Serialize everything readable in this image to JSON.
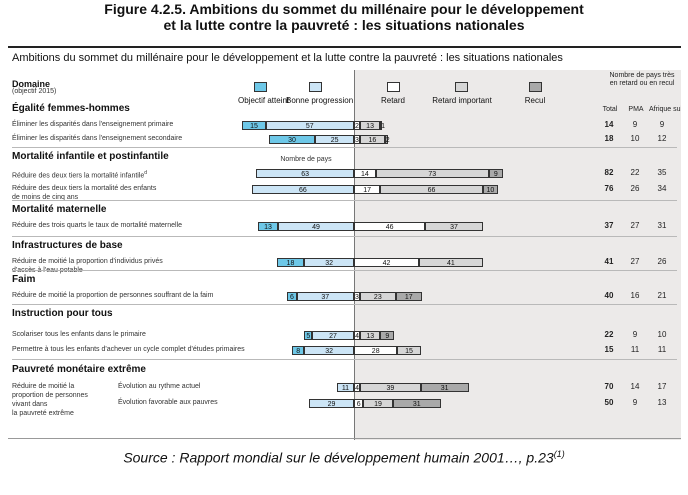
{
  "figure_title_line1": "Figure 4.2.5. Ambitions du sommet du millénaire pour le développement",
  "figure_title_line2": "et la lutte contre la pauvreté : les situations nationales",
  "source": "Source : Rapport mondial sur le développement humain 2001…, p.23",
  "source_note": "(1)",
  "colors": {
    "objectif": "#6ec8e8",
    "bonne": "#cce5f6",
    "retard": "#ffffff",
    "retard_important": "#d6d6d6",
    "recul": "#a9a9a9",
    "shade": "#eceae9"
  },
  "chart_data": {
    "type": "bar",
    "orientation": "horizontal",
    "stacking": "diverging",
    "title": "Ambitions du sommet du millénaire pour le développement et la lutte contre la pauvreté : les situations nationales",
    "domain_header": "Domaine",
    "domain_subheader": "(objectif 2015)",
    "axis_note": "Nombre de pays",
    "legend": [
      "Objectif atteint",
      "Bonne progression",
      "Retard",
      "Retard important",
      "Recul"
    ],
    "columns_header": "Nombre de pays très en retard ou en recul",
    "columns": [
      "Total",
      "PMA",
      "Afrique subsaharienne"
    ],
    "columns_display": [
      "Total",
      "PMA",
      "Afrique subsaharie"
    ],
    "sections": [
      {
        "name": "Égalité femmes-hommes",
        "rows": [
          {
            "label": [
              "Éliminer les disparités dans l'enseignement primaire"
            ],
            "objectif": 15,
            "bonne": 57,
            "retard": 2,
            "retard_important": 13,
            "recul": 1,
            "total": 14,
            "pma": 9,
            "afrique": 9
          },
          {
            "label": [
              "Éliminer les disparités dans l'enseignement secondaire"
            ],
            "objectif": 30,
            "bonne": 25,
            "retard": 3,
            "retard_important": 16,
            "recul": 2,
            "total": 18,
            "pma": 10,
            "afrique": 12
          }
        ]
      },
      {
        "name": "Mortalité infantile et postinfantile",
        "rows": [
          {
            "label": [
              "Réduire des deux tiers la mortalité infantile"
            ],
            "note": "d",
            "objectif": 0,
            "bonne": 63,
            "retard": 14,
            "retard_important": 73,
            "recul": 9,
            "total": 82,
            "pma": 22,
            "afrique": 35
          },
          {
            "label": [
              "Réduire des deux tiers la mortalité des enfants",
              "de moins de cinq ans"
            ],
            "objectif": 0,
            "bonne": 66,
            "retard": 17,
            "retard_important": 66,
            "recul": 10,
            "total": 76,
            "pma": 26,
            "afrique": 34
          }
        ]
      },
      {
        "name": "Mortalité maternelle",
        "rows": [
          {
            "label": [
              "Réduire des trois quarts le taux de mortalité maternelle"
            ],
            "objectif": 13,
            "bonne": 49,
            "retard": 46,
            "retard_important": 37,
            "recul": 0,
            "total": 37,
            "pma": 27,
            "afrique": 31
          }
        ]
      },
      {
        "name": "Infrastructures de base",
        "rows": [
          {
            "label": [
              "Réduire de moitié la proportion d'individus privés",
              "d'accès à l'eau potable"
            ],
            "objectif": 18,
            "bonne": 32,
            "retard": 42,
            "retard_important": 41,
            "recul": 0,
            "total": 41,
            "pma": 27,
            "afrique": 26
          }
        ]
      },
      {
        "name": "Faim",
        "rows": [
          {
            "label": [
              "Réduire de moitié la proportion de personnes souffrant de la faim"
            ],
            "objectif": 6,
            "bonne": 37,
            "retard": 3,
            "retard_important": 23,
            "recul": 17,
            "total": 40,
            "pma": 16,
            "afrique": 21
          }
        ]
      },
      {
        "name": "Instruction pour tous",
        "rows": [
          {
            "label": [
              "Scolariser tous les enfants dans le primaire"
            ],
            "objectif": 5,
            "bonne": 27,
            "retard": 4,
            "retard_important": 13,
            "recul": 9,
            "total": 22,
            "pma": 9,
            "afrique": 10
          },
          {
            "label": [
              "Permettre à tous les enfants d'achever un cycle complet d'études primaires"
            ],
            "objectif": 8,
            "bonne": 32,
            "retard": 28,
            "retard_important": 15,
            "recul": 0,
            "total": 15,
            "pma": 11,
            "afrique": 11
          }
        ]
      },
      {
        "name": "Pauvreté monétaire extrême",
        "group_label": [
          "Réduire de moitié la",
          "proportion de personnes",
          "vivant dans",
          "la pauvreté extrême"
        ],
        "rows": [
          {
            "label": [
              "Évolution au rythme actuel"
            ],
            "objectif": 0,
            "bonne": 11,
            "retard": 4,
            "retard_important": 39,
            "recul": 31,
            "total": 70,
            "pma": 14,
            "afrique": 17
          },
          {
            "label": [
              "Évolution favorable aux pauvres"
            ],
            "objectif": 0,
            "bonne": 29,
            "retard": 6,
            "retard_important": 19,
            "recul": 31,
            "total": 50,
            "pma": 9,
            "afrique": 13
          }
        ]
      }
    ]
  }
}
